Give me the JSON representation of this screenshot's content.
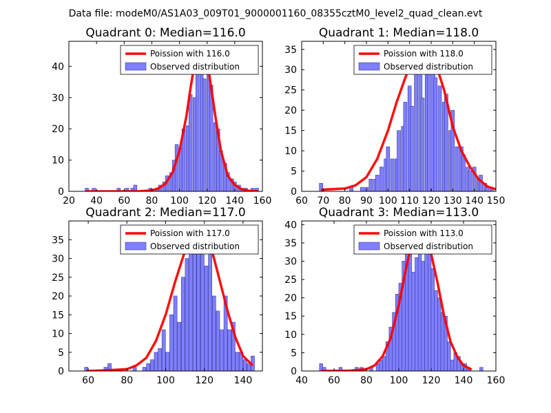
{
  "suptitle": "Data file: modeM0/AS1A03_009T01_9000001160_08355cztM0_level2_quad_clean.evt",
  "chart_data": [
    {
      "type": "bar",
      "title": "Quadrant 0: Median=116.0",
      "legend": {
        "curve": "Poission with 116.0",
        "bars": "Observed distribution",
        "placement": "upper-right"
      },
      "colors": {
        "bars": "#7f7fff",
        "curve": "#ff0000"
      },
      "xlim": [
        20,
        160
      ],
      "ylim": [
        0,
        48
      ],
      "xticks": [
        20,
        40,
        60,
        80,
        100,
        120,
        140,
        160
      ],
      "yticks": [
        0,
        10,
        20,
        30,
        40
      ],
      "bin_width": 2.4,
      "bins": [
        {
          "x": 33,
          "v": 1
        },
        {
          "x": 38,
          "v": 1
        },
        {
          "x": 56,
          "v": 1
        },
        {
          "x": 62,
          "v": 1
        },
        {
          "x": 66,
          "v": 1
        },
        {
          "x": 68,
          "v": 2
        },
        {
          "x": 79,
          "v": 1
        },
        {
          "x": 84,
          "v": 1
        },
        {
          "x": 86,
          "v": 2
        },
        {
          "x": 89,
          "v": 3
        },
        {
          "x": 91,
          "v": 5
        },
        {
          "x": 94,
          "v": 6
        },
        {
          "x": 96,
          "v": 10
        },
        {
          "x": 98,
          "v": 15
        },
        {
          "x": 101,
          "v": 14
        },
        {
          "x": 103,
          "v": 20
        },
        {
          "x": 106,
          "v": 21
        },
        {
          "x": 108,
          "v": 31
        },
        {
          "x": 111,
          "v": 30
        },
        {
          "x": 113,
          "v": 38
        },
        {
          "x": 116,
          "v": 43
        },
        {
          "x": 118,
          "v": 36
        },
        {
          "x": 121,
          "v": 38
        },
        {
          "x": 123,
          "v": 34
        },
        {
          "x": 126,
          "v": 22
        },
        {
          "x": 128,
          "v": 20
        },
        {
          "x": 130,
          "v": 13
        },
        {
          "x": 133,
          "v": 9
        },
        {
          "x": 135,
          "v": 6
        },
        {
          "x": 138,
          "v": 4
        },
        {
          "x": 140,
          "v": 3
        },
        {
          "x": 143,
          "v": 2
        },
        {
          "x": 145,
          "v": 1
        },
        {
          "x": 148,
          "v": 1
        },
        {
          "x": 153,
          "v": 1
        },
        {
          "x": 156,
          "v": 1
        }
      ],
      "curve": {
        "x": [
          32,
          70,
          80,
          85,
          90,
          95,
          100,
          105,
          108,
          111,
          114,
          116,
          118,
          121,
          124,
          127,
          130,
          135,
          140,
          145,
          150,
          157
        ],
        "y": [
          0,
          0,
          0.3,
          1,
          2.5,
          6,
          13,
          24,
          33,
          41,
          46,
          46,
          45,
          39,
          30,
          21,
          13,
          5,
          2,
          0.7,
          0.2,
          0
        ]
      }
    },
    {
      "type": "bar",
      "title": "Quadrant 1: Median=118.0",
      "legend": {
        "curve": "Poission with 118.0",
        "bars": "Observed distribution",
        "placement": "upper-right"
      },
      "colors": {
        "bars": "#7f7fff",
        "curve": "#ff0000"
      },
      "xlim": [
        60,
        150
      ],
      "ylim": [
        0,
        37
      ],
      "xticks": [
        60,
        70,
        80,
        90,
        100,
        110,
        120,
        130,
        140,
        150
      ],
      "yticks": [
        0,
        5,
        10,
        15,
        20,
        25,
        30,
        35
      ],
      "bin_width": 1.6,
      "bins": [
        {
          "x": 69,
          "v": 2
        },
        {
          "x": 83,
          "v": 1
        },
        {
          "x": 88,
          "v": 1
        },
        {
          "x": 90,
          "v": 1
        },
        {
          "x": 92,
          "v": 3
        },
        {
          "x": 94,
          "v": 3
        },
        {
          "x": 95,
          "v": 4
        },
        {
          "x": 97,
          "v": 6
        },
        {
          "x": 99,
          "v": 8
        },
        {
          "x": 100,
          "v": 11
        },
        {
          "x": 102,
          "v": 8
        },
        {
          "x": 104,
          "v": 8
        },
        {
          "x": 105,
          "v": 15
        },
        {
          "x": 107,
          "v": 16
        },
        {
          "x": 108,
          "v": 22
        },
        {
          "x": 110,
          "v": 26
        },
        {
          "x": 111,
          "v": 21
        },
        {
          "x": 113,
          "v": 29
        },
        {
          "x": 115,
          "v": 31
        },
        {
          "x": 116,
          "v": 23
        },
        {
          "x": 118,
          "v": 33
        },
        {
          "x": 119,
          "v": 30
        },
        {
          "x": 121,
          "v": 34
        },
        {
          "x": 122,
          "v": 28
        },
        {
          "x": 124,
          "v": 26
        },
        {
          "x": 126,
          "v": 22
        },
        {
          "x": 127,
          "v": 24
        },
        {
          "x": 129,
          "v": 15
        },
        {
          "x": 130,
          "v": 20
        },
        {
          "x": 132,
          "v": 11
        },
        {
          "x": 134,
          "v": 11
        },
        {
          "x": 135,
          "v": 9
        },
        {
          "x": 137,
          "v": 6
        },
        {
          "x": 138,
          "v": 5
        },
        {
          "x": 140,
          "v": 6
        },
        {
          "x": 142,
          "v": 3
        },
        {
          "x": 143,
          "v": 4
        },
        {
          "x": 145,
          "v": 2
        },
        {
          "x": 146,
          "v": 1
        },
        {
          "x": 148,
          "v": 1
        }
      ],
      "curve": {
        "x": [
          69,
          80,
          85,
          90,
          95,
          100,
          104,
          108,
          111,
          114,
          117,
          118,
          120,
          123,
          126,
          130,
          134,
          138,
          142,
          146,
          150
        ],
        "y": [
          0.4,
          0.7,
          1.5,
          3.5,
          8,
          15,
          22,
          28,
          32,
          34,
          35,
          35,
          34,
          30,
          25,
          16,
          10,
          6,
          3,
          1.2,
          0.5
        ]
      }
    },
    {
      "type": "bar",
      "title": "Quadrant 2: Median=117.0",
      "legend": {
        "curve": "Poission with 117.0",
        "bars": "Observed distribution",
        "placement": "upper-right"
      },
      "colors": {
        "bars": "#7f7fff",
        "curve": "#ff0000"
      },
      "xlim": [
        50,
        150
      ],
      "ylim": [
        0,
        40
      ],
      "xticks": [
        60,
        80,
        100,
        120,
        140
      ],
      "yticks": [
        0,
        5,
        10,
        15,
        20,
        25,
        30,
        35
      ],
      "bin_width": 1.8,
      "bins": [
        {
          "x": 59,
          "v": 1
        },
        {
          "x": 69,
          "v": 1
        },
        {
          "x": 71,
          "v": 2
        },
        {
          "x": 84,
          "v": 1
        },
        {
          "x": 89,
          "v": 1
        },
        {
          "x": 91,
          "v": 2
        },
        {
          "x": 93,
          "v": 3
        },
        {
          "x": 95,
          "v": 5
        },
        {
          "x": 97,
          "v": 6
        },
        {
          "x": 99,
          "v": 11
        },
        {
          "x": 101,
          "v": 5
        },
        {
          "x": 103,
          "v": 15
        },
        {
          "x": 105,
          "v": 20
        },
        {
          "x": 107,
          "v": 13
        },
        {
          "x": 109,
          "v": 25
        },
        {
          "x": 111,
          "v": 30
        },
        {
          "x": 113,
          "v": 33
        },
        {
          "x": 115,
          "v": 35
        },
        {
          "x": 117,
          "v": 32
        },
        {
          "x": 119,
          "v": 36
        },
        {
          "x": 121,
          "v": 28
        },
        {
          "x": 123,
          "v": 36
        },
        {
          "x": 125,
          "v": 20
        },
        {
          "x": 127,
          "v": 16
        },
        {
          "x": 129,
          "v": 11
        },
        {
          "x": 131,
          "v": 20
        },
        {
          "x": 133,
          "v": 11
        },
        {
          "x": 135,
          "v": 13
        },
        {
          "x": 137,
          "v": 5
        },
        {
          "x": 139,
          "v": 5
        },
        {
          "x": 141,
          "v": 3
        },
        {
          "x": 143,
          "v": 2
        },
        {
          "x": 145,
          "v": 4
        }
      ],
      "curve": {
        "x": [
          59,
          70,
          80,
          85,
          90,
          95,
          100,
          105,
          110,
          114,
          117,
          120,
          124,
          128,
          132,
          136,
          140,
          145
        ],
        "y": [
          0,
          0.2,
          0.5,
          1.5,
          3.5,
          8,
          15,
          24,
          32,
          36,
          38,
          37,
          32,
          24,
          16,
          9,
          4,
          1.5
        ]
      }
    },
    {
      "type": "bar",
      "title": "Quadrant 3: Median=113.0",
      "legend": {
        "curve": "Poission with 113.0",
        "bars": "Observed distribution",
        "placement": "upper-right"
      },
      "colors": {
        "bars": "#7f7fff",
        "curve": "#ff0000"
      },
      "xlim": [
        40,
        160
      ],
      "ylim": [
        0,
        41
      ],
      "xticks": [
        40,
        60,
        80,
        100,
        120,
        140,
        160
      ],
      "yticks": [
        0,
        5,
        10,
        15,
        20,
        25,
        30,
        35,
        40
      ],
      "bin_width": 2.0,
      "bins": [
        {
          "x": 52,
          "v": 2
        },
        {
          "x": 54,
          "v": 1
        },
        {
          "x": 64,
          "v": 1
        },
        {
          "x": 74,
          "v": 1
        },
        {
          "x": 77,
          "v": 1
        },
        {
          "x": 83,
          "v": 1
        },
        {
          "x": 87,
          "v": 2
        },
        {
          "x": 89,
          "v": 3
        },
        {
          "x": 91,
          "v": 4
        },
        {
          "x": 93,
          "v": 8
        },
        {
          "x": 95,
          "v": 12
        },
        {
          "x": 97,
          "v": 16
        },
        {
          "x": 99,
          "v": 21
        },
        {
          "x": 101,
          "v": 24
        },
        {
          "x": 103,
          "v": 30
        },
        {
          "x": 105,
          "v": 38
        },
        {
          "x": 107,
          "v": 33
        },
        {
          "x": 109,
          "v": 27
        },
        {
          "x": 111,
          "v": 31
        },
        {
          "x": 113,
          "v": 38
        },
        {
          "x": 115,
          "v": 30
        },
        {
          "x": 117,
          "v": 34
        },
        {
          "x": 119,
          "v": 36
        },
        {
          "x": 121,
          "v": 28
        },
        {
          "x": 123,
          "v": 22
        },
        {
          "x": 125,
          "v": 20
        },
        {
          "x": 127,
          "v": 16
        },
        {
          "x": 129,
          "v": 15
        },
        {
          "x": 131,
          "v": 8
        },
        {
          "x": 133,
          "v": 3
        },
        {
          "x": 135,
          "v": 5
        },
        {
          "x": 137,
          "v": 4
        },
        {
          "x": 139,
          "v": 2
        },
        {
          "x": 141,
          "v": 2
        },
        {
          "x": 143,
          "v": 1
        },
        {
          "x": 151,
          "v": 1
        }
      ],
      "curve": {
        "x": [
          52,
          70,
          80,
          85,
          90,
          95,
          100,
          104,
          108,
          111,
          113,
          116,
          120,
          124,
          128,
          132,
          136,
          140,
          145
        ],
        "y": [
          0,
          0.1,
          0.5,
          1.5,
          4,
          9,
          18,
          27,
          35,
          38,
          39,
          38,
          32,
          24,
          15,
          8,
          4,
          1.5,
          0.4
        ]
      }
    }
  ]
}
